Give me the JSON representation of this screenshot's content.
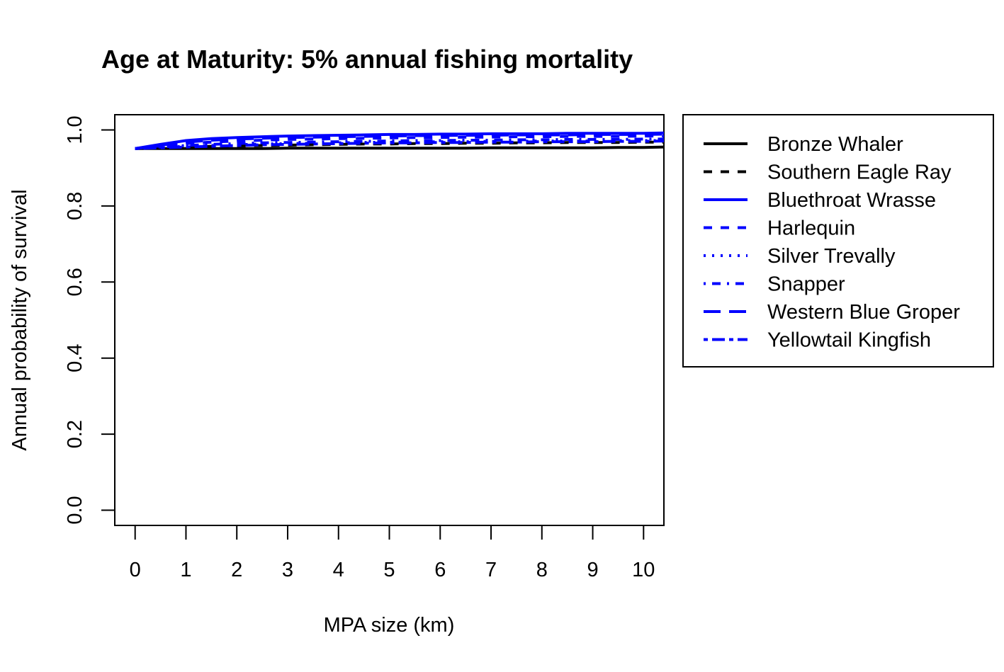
{
  "chart_data": {
    "type": "line",
    "title": "Age at Maturity: 5% annual fishing mortality",
    "xlabel": "MPA size (km)",
    "ylabel": "Annual probability of survival",
    "xlim": [
      -0.4,
      10.4
    ],
    "ylim": [
      -0.04,
      1.04
    ],
    "x_ticks": [
      "0",
      "1",
      "2",
      "3",
      "4",
      "5",
      "6",
      "7",
      "8",
      "9",
      "10"
    ],
    "y_ticks": [
      "0.0",
      "0.2",
      "0.4",
      "0.6",
      "0.8",
      "1.0"
    ],
    "grid": false,
    "legend_position": "right",
    "x": [
      0,
      0.5,
      1,
      1.5,
      2,
      2.5,
      3,
      3.5,
      4,
      4.5,
      5,
      5.5,
      6,
      6.5,
      7,
      7.5,
      8,
      8.5,
      9,
      9.5,
      10,
      10.4
    ],
    "series": [
      {
        "name": "Bronze Whaler",
        "color": "#000000",
        "dash": "solid",
        "values": [
          0.951,
          0.951,
          0.951,
          0.951,
          0.951,
          0.951,
          0.952,
          0.952,
          0.952,
          0.952,
          0.952,
          0.952,
          0.952,
          0.952,
          0.953,
          0.953,
          0.953,
          0.953,
          0.953,
          0.954,
          0.954,
          0.955
        ]
      },
      {
        "name": "Southern Eagle Ray",
        "color": "#000000",
        "dash": "dashed",
        "values": [
          0.951,
          0.953,
          0.955,
          0.957,
          0.958,
          0.959,
          0.96,
          0.961,
          0.962,
          0.963,
          0.963,
          0.964,
          0.964,
          0.965,
          0.965,
          0.966,
          0.966,
          0.967,
          0.967,
          0.967,
          0.968,
          0.968
        ]
      },
      {
        "name": "Bluethroat Wrasse",
        "color": "#0000ff",
        "dash": "solid",
        "values": [
          0.951,
          0.962,
          0.972,
          0.977,
          0.98,
          0.982,
          0.984,
          0.985,
          0.986,
          0.987,
          0.988,
          0.988,
          0.989,
          0.989,
          0.99,
          0.99,
          0.99,
          0.991,
          0.991,
          0.991,
          0.991,
          0.992
        ]
      },
      {
        "name": "Harlequin",
        "color": "#0000ff",
        "dash": "dashed",
        "values": [
          0.951,
          0.958,
          0.964,
          0.968,
          0.971,
          0.973,
          0.975,
          0.976,
          0.977,
          0.978,
          0.979,
          0.98,
          0.98,
          0.981,
          0.981,
          0.982,
          0.982,
          0.983,
          0.983,
          0.983,
          0.984,
          0.984
        ]
      },
      {
        "name": "Silver Trevally",
        "color": "#0000ff",
        "dash": "dotted",
        "values": [
          0.951,
          0.954,
          0.957,
          0.959,
          0.961,
          0.963,
          0.964,
          0.965,
          0.966,
          0.967,
          0.968,
          0.968,
          0.969,
          0.969,
          0.97,
          0.97,
          0.971,
          0.971,
          0.971,
          0.972,
          0.972,
          0.972
        ]
      },
      {
        "name": "Snapper",
        "color": "#0000ff",
        "dash": "dotdash",
        "values": [
          0.951,
          0.955,
          0.959,
          0.962,
          0.964,
          0.966,
          0.967,
          0.968,
          0.969,
          0.97,
          0.971,
          0.972,
          0.972,
          0.973,
          0.973,
          0.974,
          0.974,
          0.975,
          0.975,
          0.975,
          0.976,
          0.976
        ]
      },
      {
        "name": "Western Blue Groper",
        "color": "#0000ff",
        "dash": "longdash",
        "values": [
          0.951,
          0.96,
          0.968,
          0.973,
          0.976,
          0.978,
          0.98,
          0.981,
          0.982,
          0.983,
          0.984,
          0.985,
          0.985,
          0.986,
          0.986,
          0.987,
          0.987,
          0.987,
          0.988,
          0.988,
          0.988,
          0.989
        ]
      },
      {
        "name": "Yellowtail Kingfish",
        "color": "#0000ff",
        "dash": "twodash",
        "values": [
          0.951,
          0.953,
          0.955,
          0.957,
          0.959,
          0.961,
          0.962,
          0.963,
          0.964,
          0.965,
          0.966,
          0.966,
          0.967,
          0.967,
          0.968,
          0.968,
          0.969,
          0.969,
          0.969,
          0.97,
          0.97,
          0.971
        ]
      }
    ]
  }
}
